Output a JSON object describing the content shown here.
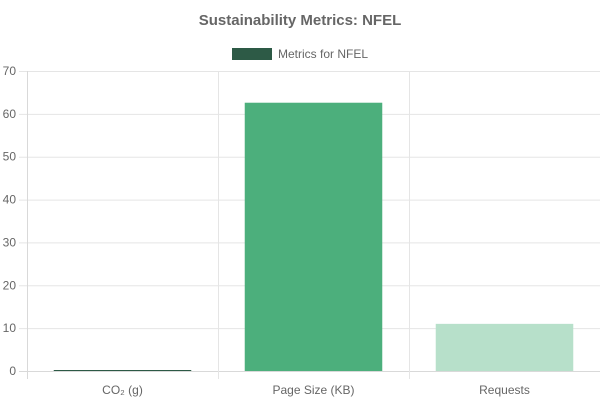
{
  "chart_data": {
    "type": "bar",
    "title": "Sustainability Metrics: NFEL",
    "categories": [
      "CO₂ (g)",
      "Page Size (KB)",
      "Requests"
    ],
    "series": [
      {
        "name": "Metrics for NFEL",
        "values": [
          0.17,
          62.6,
          11
        ],
        "colors": [
          "#2d5a46",
          "#4caf7c",
          "#b7e0ca"
        ]
      }
    ],
    "legend_color": "#2d5a46",
    "ylim": [
      0,
      70
    ],
    "yticks": [
      0,
      10,
      20,
      30,
      40,
      50,
      60,
      70
    ],
    "grid": true,
    "legend_position": "top-center",
    "xlabel": "",
    "ylabel": ""
  }
}
